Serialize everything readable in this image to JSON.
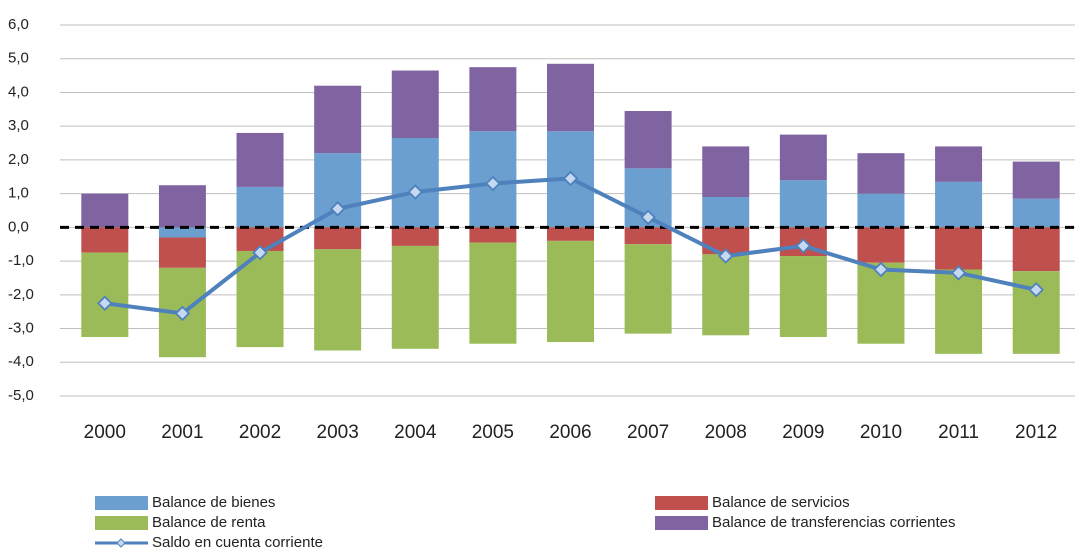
{
  "chart_data": {
    "type": "bar",
    "stacked": true,
    "categories": [
      "2000",
      "2001",
      "2002",
      "2003",
      "2004",
      "2005",
      "2006",
      "2007",
      "2008",
      "2009",
      "2010",
      "2011",
      "2012"
    ],
    "series": [
      {
        "name": "Balance de bienes",
        "color": "#6a9fd0",
        "values": [
          0,
          -0.3,
          1.2,
          2.2,
          2.65,
          2.85,
          2.85,
          1.75,
          0.9,
          1.4,
          1.0,
          1.35,
          0.85
        ]
      },
      {
        "name": "Balance de servicios",
        "color": "#c0504d",
        "values": [
          -0.75,
          -0.9,
          -0.7,
          -0.65,
          -0.55,
          -0.45,
          -0.4,
          -0.5,
          -0.8,
          -0.85,
          -1.05,
          -1.25,
          -1.3
        ]
      },
      {
        "name": "Balance de renta",
        "color": "#9bbb59",
        "values": [
          -2.5,
          -2.65,
          -2.85,
          -3.0,
          -3.05,
          -3.0,
          -3.0,
          -2.65,
          -2.4,
          -2.4,
          -2.4,
          -2.5,
          -2.45
        ]
      },
      {
        "name": "Balance de transferencias corrientes",
        "color": "#8064a2",
        "values": [
          1.0,
          1.25,
          1.6,
          2.0,
          2.0,
          1.9,
          2.0,
          1.7,
          1.5,
          1.35,
          1.2,
          1.05,
          1.1
        ]
      },
      {
        "name": "Saldo en cuenta corriente",
        "type": "line",
        "color": "#4f81bd",
        "marker_fill": "#c6d9f1",
        "values": [
          -2.25,
          -2.55,
          -0.75,
          0.55,
          1.05,
          1.3,
          1.45,
          0.3,
          -0.85,
          -0.55,
          -1.25,
          -1.35,
          -1.85
        ]
      }
    ],
    "ylim": [
      -5,
      6
    ],
    "yticks": [
      {
        "value": -5,
        "label": "-5,0"
      },
      {
        "value": -4,
        "label": "-4,0"
      },
      {
        "value": -3,
        "label": "-3,0"
      },
      {
        "value": -2,
        "label": "-2,0"
      },
      {
        "value": -1,
        "label": "-1,0"
      },
      {
        "value": 0,
        "label": "0,0"
      },
      {
        "value": 1,
        "label": "1,0"
      },
      {
        "value": 2,
        "label": "2,0"
      },
      {
        "value": 3,
        "label": "3,0"
      },
      {
        "value": 4,
        "label": "4,0"
      },
      {
        "value": 5,
        "label": "5,0"
      },
      {
        "value": 6,
        "label": "6,0"
      }
    ],
    "grid": true,
    "legend": "bottom"
  }
}
